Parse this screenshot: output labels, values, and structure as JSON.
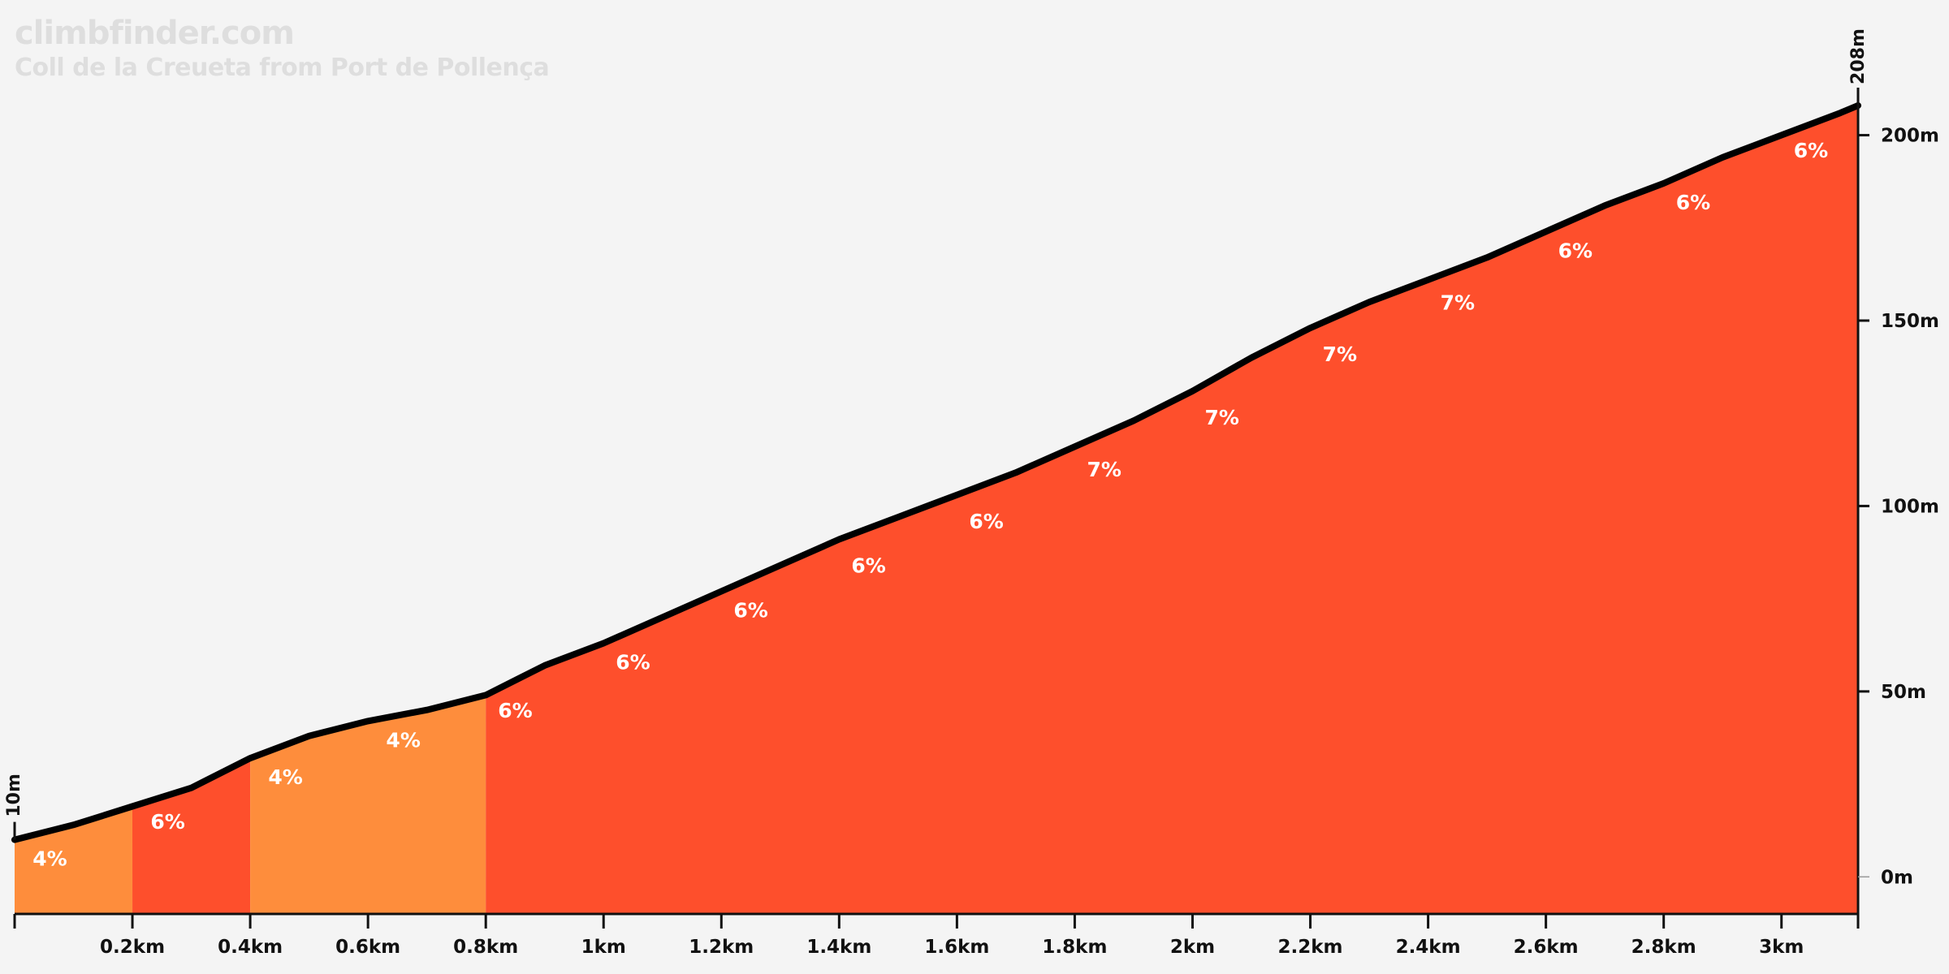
{
  "brand": "climbfinder.com",
  "subtitle": "Coll de la Creueta from Port de Pollença",
  "colors": {
    "background": "#f4f4f4",
    "moderate": "#fe8d3c",
    "steep": "#fe4f2c",
    "profile_line": "#000000",
    "label": "#ffffff",
    "axis": "#111111"
  },
  "chart_data": {
    "type": "area",
    "x_unit": "km",
    "y_unit": "m",
    "xlim": [
      0,
      3.13
    ],
    "ylim": [
      -10,
      215
    ],
    "x_ticks": [
      {
        "value": 0.2,
        "label": "0.2km"
      },
      {
        "value": 0.4,
        "label": "0.4km"
      },
      {
        "value": 0.6,
        "label": "0.6km"
      },
      {
        "value": 0.8,
        "label": "0.8km"
      },
      {
        "value": 1.0,
        "label": "1km"
      },
      {
        "value": 1.2,
        "label": "1.2km"
      },
      {
        "value": 1.4,
        "label": "1.4km"
      },
      {
        "value": 1.6,
        "label": "1.6km"
      },
      {
        "value": 1.8,
        "label": "1.8km"
      },
      {
        "value": 2.0,
        "label": "2km"
      },
      {
        "value": 2.2,
        "label": "2.2km"
      },
      {
        "value": 2.4,
        "label": "2.4km"
      },
      {
        "value": 2.6,
        "label": "2.6km"
      },
      {
        "value": 2.8,
        "label": "2.8km"
      },
      {
        "value": 3.0,
        "label": "3km"
      }
    ],
    "y_ticks": [
      {
        "value": 0,
        "label": "0m"
      },
      {
        "value": 50,
        "label": "50m"
      },
      {
        "value": 100,
        "label": "100m"
      },
      {
        "value": 150,
        "label": "150m"
      },
      {
        "value": 200,
        "label": "200m"
      }
    ],
    "start_label": "10m",
    "end_label": "208m",
    "profile": {
      "x": [
        0,
        0.1,
        0.2,
        0.3,
        0.4,
        0.5,
        0.6,
        0.7,
        0.8,
        0.9,
        1.0,
        1.1,
        1.2,
        1.3,
        1.4,
        1.5,
        1.6,
        1.7,
        1.8,
        1.9,
        2.0,
        2.1,
        2.2,
        2.3,
        2.4,
        2.5,
        2.6,
        2.7,
        2.8,
        2.9,
        3.0,
        3.1,
        3.13
      ],
      "y": [
        10,
        14,
        19,
        24,
        32,
        38,
        42,
        45,
        49,
        57,
        63,
        70,
        77,
        84,
        91,
        97,
        103,
        109,
        116,
        123,
        131,
        140,
        148,
        155,
        161,
        167,
        174,
        181,
        187,
        194,
        200,
        206,
        208
      ]
    },
    "segments": [
      {
        "start": 0.0,
        "end": 0.2,
        "label": "4%",
        "category": "moderate",
        "label_x": 0.06,
        "label_y": 3
      },
      {
        "start": 0.2,
        "end": 0.4,
        "label": "6%",
        "category": "steep",
        "label_x": 0.26,
        "label_y": 13
      },
      {
        "start": 0.4,
        "end": 0.8,
        "label": "4%",
        "category": "moderate",
        "label_x": 0.46,
        "label_y": 25
      },
      {
        "start": 0.8,
        "end": 3.13,
        "label": "6%",
        "category": "steep",
        "label_x": 0.85,
        "label_y": 43
      }
    ],
    "grade_labels": [
      {
        "x": 0.66,
        "y": 35,
        "label": "4%"
      },
      {
        "x": 1.05,
        "y": 56,
        "label": "6%"
      },
      {
        "x": 1.25,
        "y": 70,
        "label": "6%"
      },
      {
        "x": 1.45,
        "y": 82,
        "label": "6%"
      },
      {
        "x": 1.65,
        "y": 94,
        "label": "6%"
      },
      {
        "x": 1.85,
        "y": 108,
        "label": "7%"
      },
      {
        "x": 2.05,
        "y": 122,
        "label": "7%"
      },
      {
        "x": 2.25,
        "y": 139,
        "label": "7%"
      },
      {
        "x": 2.45,
        "y": 153,
        "label": "7%"
      },
      {
        "x": 2.65,
        "y": 167,
        "label": "6%"
      },
      {
        "x": 2.85,
        "y": 180,
        "label": "6%"
      },
      {
        "x": 3.05,
        "y": 194,
        "label": "6%"
      }
    ],
    "grid": false,
    "legend": "none"
  }
}
